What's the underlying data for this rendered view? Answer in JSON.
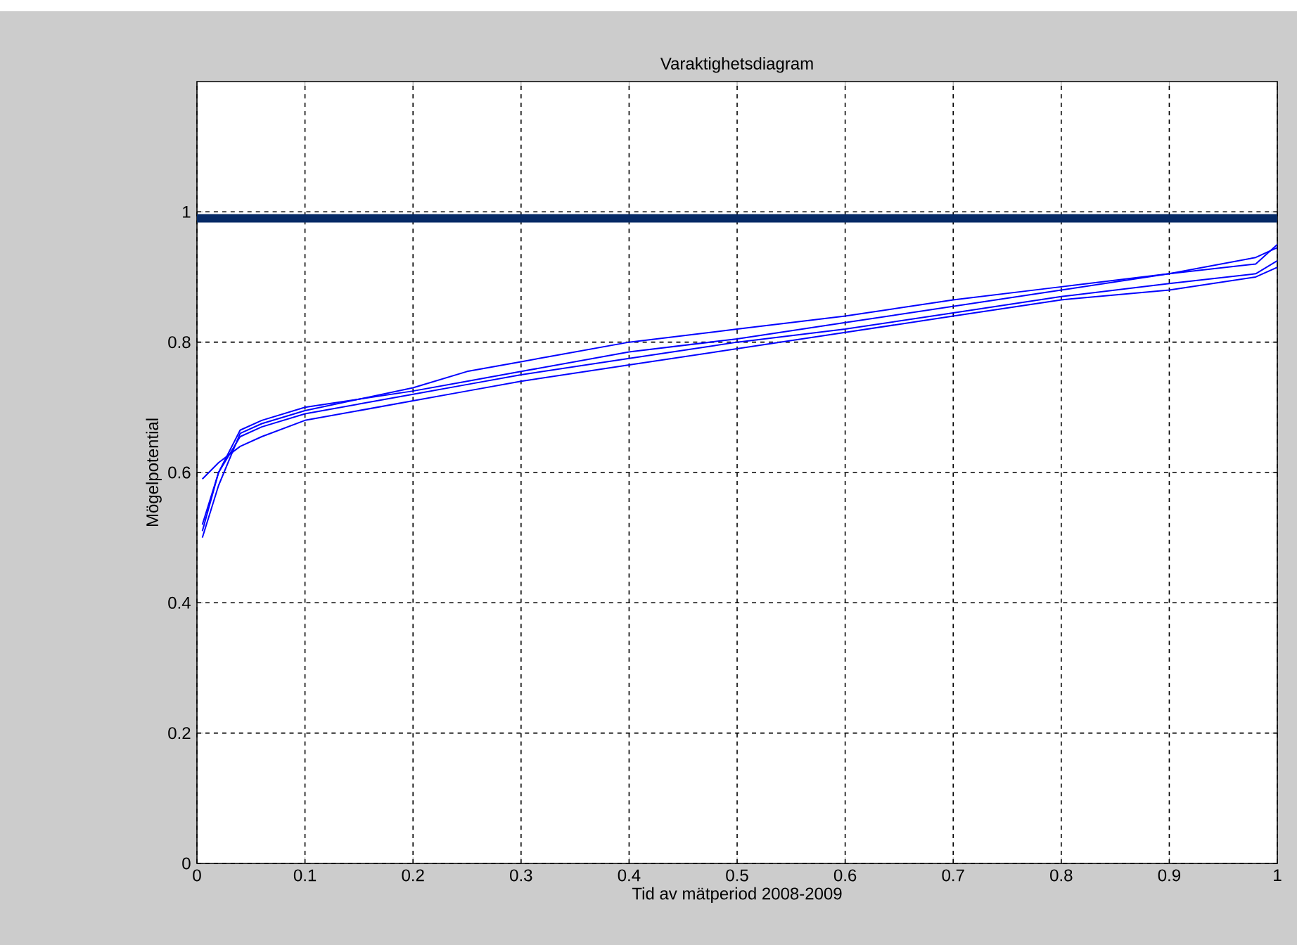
{
  "chart_data": {
    "type": "line",
    "title": "Varaktighetsdiagram",
    "xlabel": "Tid av mätperiod 2008-2009",
    "ylabel": "Mögelpotential",
    "xlim": [
      0,
      1
    ],
    "ylim": [
      0,
      1.2
    ],
    "xticks": [
      0,
      0.1,
      0.2,
      0.3,
      0.4,
      0.5,
      0.6,
      0.7,
      0.8,
      0.9,
      1
    ],
    "yticks": [
      0,
      0.2,
      0.4,
      0.6,
      0.8,
      1
    ],
    "grid": true,
    "ref_lines": [
      {
        "axis": "y",
        "value": 0.99,
        "color": "#062a66"
      }
    ],
    "series": [
      {
        "color": "#0000ff",
        "x": [
          0.005,
          0.02,
          0.04,
          0.06,
          0.1,
          0.2,
          0.25,
          0.3,
          0.4,
          0.5,
          0.6,
          0.7,
          0.8,
          0.9,
          0.98,
          1
        ],
        "values": [
          0.59,
          0.615,
          0.64,
          0.655,
          0.68,
          0.71,
          0.725,
          0.74,
          0.765,
          0.79,
          0.815,
          0.84,
          0.865,
          0.88,
          0.9,
          0.915
        ]
      },
      {
        "color": "#0000ff",
        "x": [
          0.005,
          0.02,
          0.04,
          0.06,
          0.1,
          0.2,
          0.25,
          0.3,
          0.4,
          0.5,
          0.6,
          0.7,
          0.8,
          0.9,
          0.98,
          1
        ],
        "values": [
          0.51,
          0.6,
          0.665,
          0.68,
          0.7,
          0.725,
          0.74,
          0.755,
          0.785,
          0.805,
          0.83,
          0.855,
          0.88,
          0.905,
          0.92,
          0.95
        ]
      },
      {
        "color": "#0000ff",
        "x": [
          0.005,
          0.02,
          0.04,
          0.06,
          0.1,
          0.2,
          0.25,
          0.3,
          0.4,
          0.5,
          0.6,
          0.7,
          0.8,
          0.9,
          0.98,
          1
        ],
        "values": [
          0.5,
          0.58,
          0.66,
          0.675,
          0.695,
          0.73,
          0.755,
          0.77,
          0.8,
          0.82,
          0.84,
          0.865,
          0.885,
          0.905,
          0.93,
          0.945
        ]
      },
      {
        "color": "#0000ff",
        "x": [
          0.005,
          0.02,
          0.04,
          0.06,
          0.1,
          0.2,
          0.25,
          0.3,
          0.4,
          0.5,
          0.6,
          0.7,
          0.8,
          0.9,
          0.98,
          1
        ],
        "values": [
          0.52,
          0.6,
          0.655,
          0.67,
          0.69,
          0.72,
          0.735,
          0.75,
          0.775,
          0.8,
          0.82,
          0.845,
          0.87,
          0.89,
          0.905,
          0.925
        ]
      }
    ]
  }
}
